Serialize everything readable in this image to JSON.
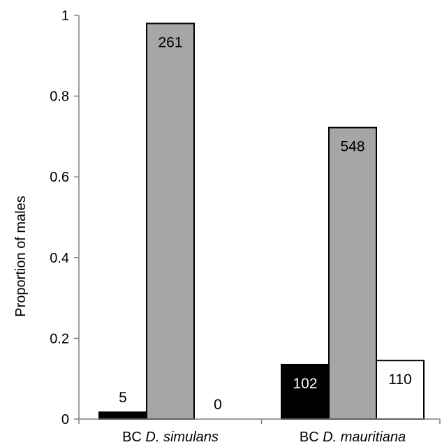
{
  "chart_data": {
    "type": "bar",
    "categories": [
      {
        "prefix": "BC ",
        "species": "D. simulans"
      },
      {
        "prefix": "BC ",
        "species": "D. mauritiana"
      }
    ],
    "series": [
      {
        "fill": "#000000",
        "label_color": "#ffffff",
        "values": [
          0.017,
          0.135
        ],
        "labels": [
          "5",
          "102"
        ]
      },
      {
        "fill": "#a6a6a6",
        "label_color": "#000000",
        "values": [
          0.98,
          0.722
        ],
        "labels": [
          "261",
          "548"
        ]
      },
      {
        "fill": "#ffffff",
        "label_color": "#000000",
        "values": [
          0.0,
          0.145
        ],
        "labels": [
          "0",
          "110"
        ]
      }
    ],
    "ylabel": "Proportion of males",
    "ylim": [
      0,
      1
    ],
    "yticks": [
      "0",
      "0.2",
      "0.4",
      "0.6",
      "0.8",
      "1"
    ],
    "grid": false,
    "legend": "none"
  }
}
